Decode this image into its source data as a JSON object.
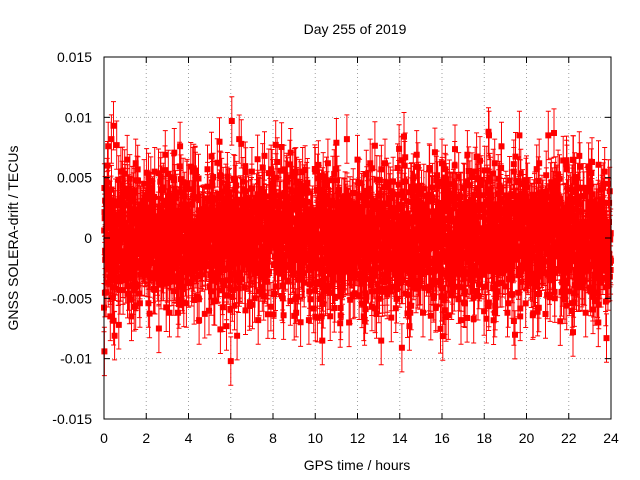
{
  "chart_data": {
    "type": "scatter",
    "title": "Day 255 of 2019",
    "xlabel": "GPS time / hours",
    "ylabel": "GNSS SOLERA-drift / TECUs",
    "xlim": [
      0,
      24
    ],
    "ylim": [
      -0.015,
      0.015
    ],
    "x_ticks": [
      "0",
      "2",
      "4",
      "6",
      "8",
      "10",
      "12",
      "14",
      "16",
      "18",
      "20",
      "22",
      "24"
    ],
    "y_ticks": [
      "-0.015",
      "-0.01",
      "-0.005",
      "0",
      "0.005",
      "0.01",
      "0.015"
    ],
    "grid": true,
    "legend": "none",
    "series": [
      {
        "color": "#ff0000",
        "marker": "square",
        "error_bars": true,
        "error_bar_halfwidth": 0.002,
        "sample_interval_hours": 0.0083,
        "noise_std": 0.0027,
        "points": [
          [
            0.02,
            -0.0094
          ],
          [
            0.05,
            0.0031
          ],
          [
            0.1,
            -0.0045
          ],
          [
            0.15,
            0.0046
          ],
          [
            0.2,
            0.0076
          ],
          [
            0.3,
            -0.0065
          ],
          [
            0.35,
            0.0082
          ],
          [
            0.4,
            0.0002
          ],
          [
            0.45,
            0.0093
          ],
          [
            0.5,
            -0.0081
          ],
          [
            0.6,
            0.0077
          ],
          [
            0.65,
            0.0011
          ],
          [
            0.7,
            -0.0072
          ],
          [
            0.8,
            0.0055
          ],
          [
            0.9,
            -0.0035
          ],
          [
            1.1,
            0.0065
          ],
          [
            1.3,
            -0.0065
          ],
          [
            1.5,
            0.0062
          ],
          [
            1.7,
            -0.0054
          ],
          [
            1.9,
            0.0045
          ],
          [
            2.1,
            -0.0054
          ],
          [
            2.4,
            0.0055
          ],
          [
            2.6,
            -0.0075
          ],
          [
            2.9,
            0.0069
          ],
          [
            3.1,
            -0.0062
          ],
          [
            3.3,
            0.0048
          ],
          [
            3.5,
            -0.0062
          ],
          [
            3.6,
            0.0076
          ],
          [
            3.9,
            -0.0054
          ],
          [
            4.2,
            0.0055
          ],
          [
            4.5,
            -0.0068
          ],
          [
            4.9,
            0.0057
          ],
          [
            5.2,
            -0.0052
          ],
          [
            5.5,
            0.0052
          ],
          [
            5.8,
            -0.0073
          ],
          [
            6.0,
            -0.0102
          ],
          [
            6.05,
            0.0097
          ],
          [
            6.3,
            -0.0081
          ],
          [
            6.5,
            0.0078
          ],
          [
            6.7,
            -0.006
          ],
          [
            7.0,
            0.0055
          ],
          [
            7.3,
            -0.0068
          ],
          [
            7.6,
            0.0068
          ],
          [
            7.9,
            -0.0057
          ],
          [
            8.2,
            0.0063
          ],
          [
            8.5,
            -0.0064
          ],
          [
            8.8,
            0.0061
          ],
          [
            9.1,
            -0.0062
          ],
          [
            9.4,
            0.0055
          ],
          [
            9.7,
            -0.0068
          ],
          [
            10.0,
            0.0055
          ],
          [
            10.3,
            -0.0065
          ],
          [
            10.6,
            0.0062
          ],
          [
            10.9,
            -0.0058
          ],
          [
            11.0,
            0.0079
          ],
          [
            11.2,
            -0.0058
          ],
          [
            11.5,
            0.0082
          ],
          [
            11.6,
            -0.007
          ],
          [
            12.0,
            0.0065
          ],
          [
            12.3,
            -0.0065
          ],
          [
            12.6,
            0.0062
          ],
          [
            12.9,
            -0.0063
          ],
          [
            13.3,
            0.0062
          ],
          [
            13.6,
            -0.0066
          ],
          [
            13.9,
            0.0058
          ],
          [
            14.1,
            -0.0091
          ],
          [
            14.2,
            0.0084
          ],
          [
            14.5,
            -0.0062
          ],
          [
            14.8,
            0.0069
          ],
          [
            15.1,
            -0.0062
          ],
          [
            15.4,
            0.0058
          ],
          [
            15.7,
            -0.0058
          ],
          [
            16.0,
            0.0062
          ],
          [
            16.3,
            -0.0064
          ],
          [
            16.6,
            0.006
          ],
          [
            16.9,
            -0.0068
          ],
          [
            17.2,
            0.0069
          ],
          [
            17.5,
            -0.0067
          ],
          [
            17.8,
            0.0064
          ],
          [
            18.1,
            -0.0067
          ],
          [
            18.2,
            0.0088
          ],
          [
            18.5,
            -0.0062
          ],
          [
            18.8,
            0.0058
          ],
          [
            19.1,
            -0.0062
          ],
          [
            19.4,
            0.0055
          ],
          [
            19.7,
            -0.0065
          ],
          [
            20.0,
            0.0048
          ],
          [
            20.3,
            -0.0064
          ],
          [
            20.6,
            0.0062
          ],
          [
            20.9,
            -0.0063
          ],
          [
            21.3,
            0.0087
          ],
          [
            21.6,
            -0.0069
          ],
          [
            21.9,
            0.0061
          ],
          [
            22.2,
            -0.0078
          ],
          [
            22.5,
            0.0068
          ],
          [
            22.8,
            -0.0062
          ],
          [
            23.1,
            0.0063
          ],
          [
            23.4,
            -0.007
          ],
          [
            23.7,
            0.0055
          ],
          [
            23.95,
            -0.0032
          ]
        ]
      }
    ]
  }
}
